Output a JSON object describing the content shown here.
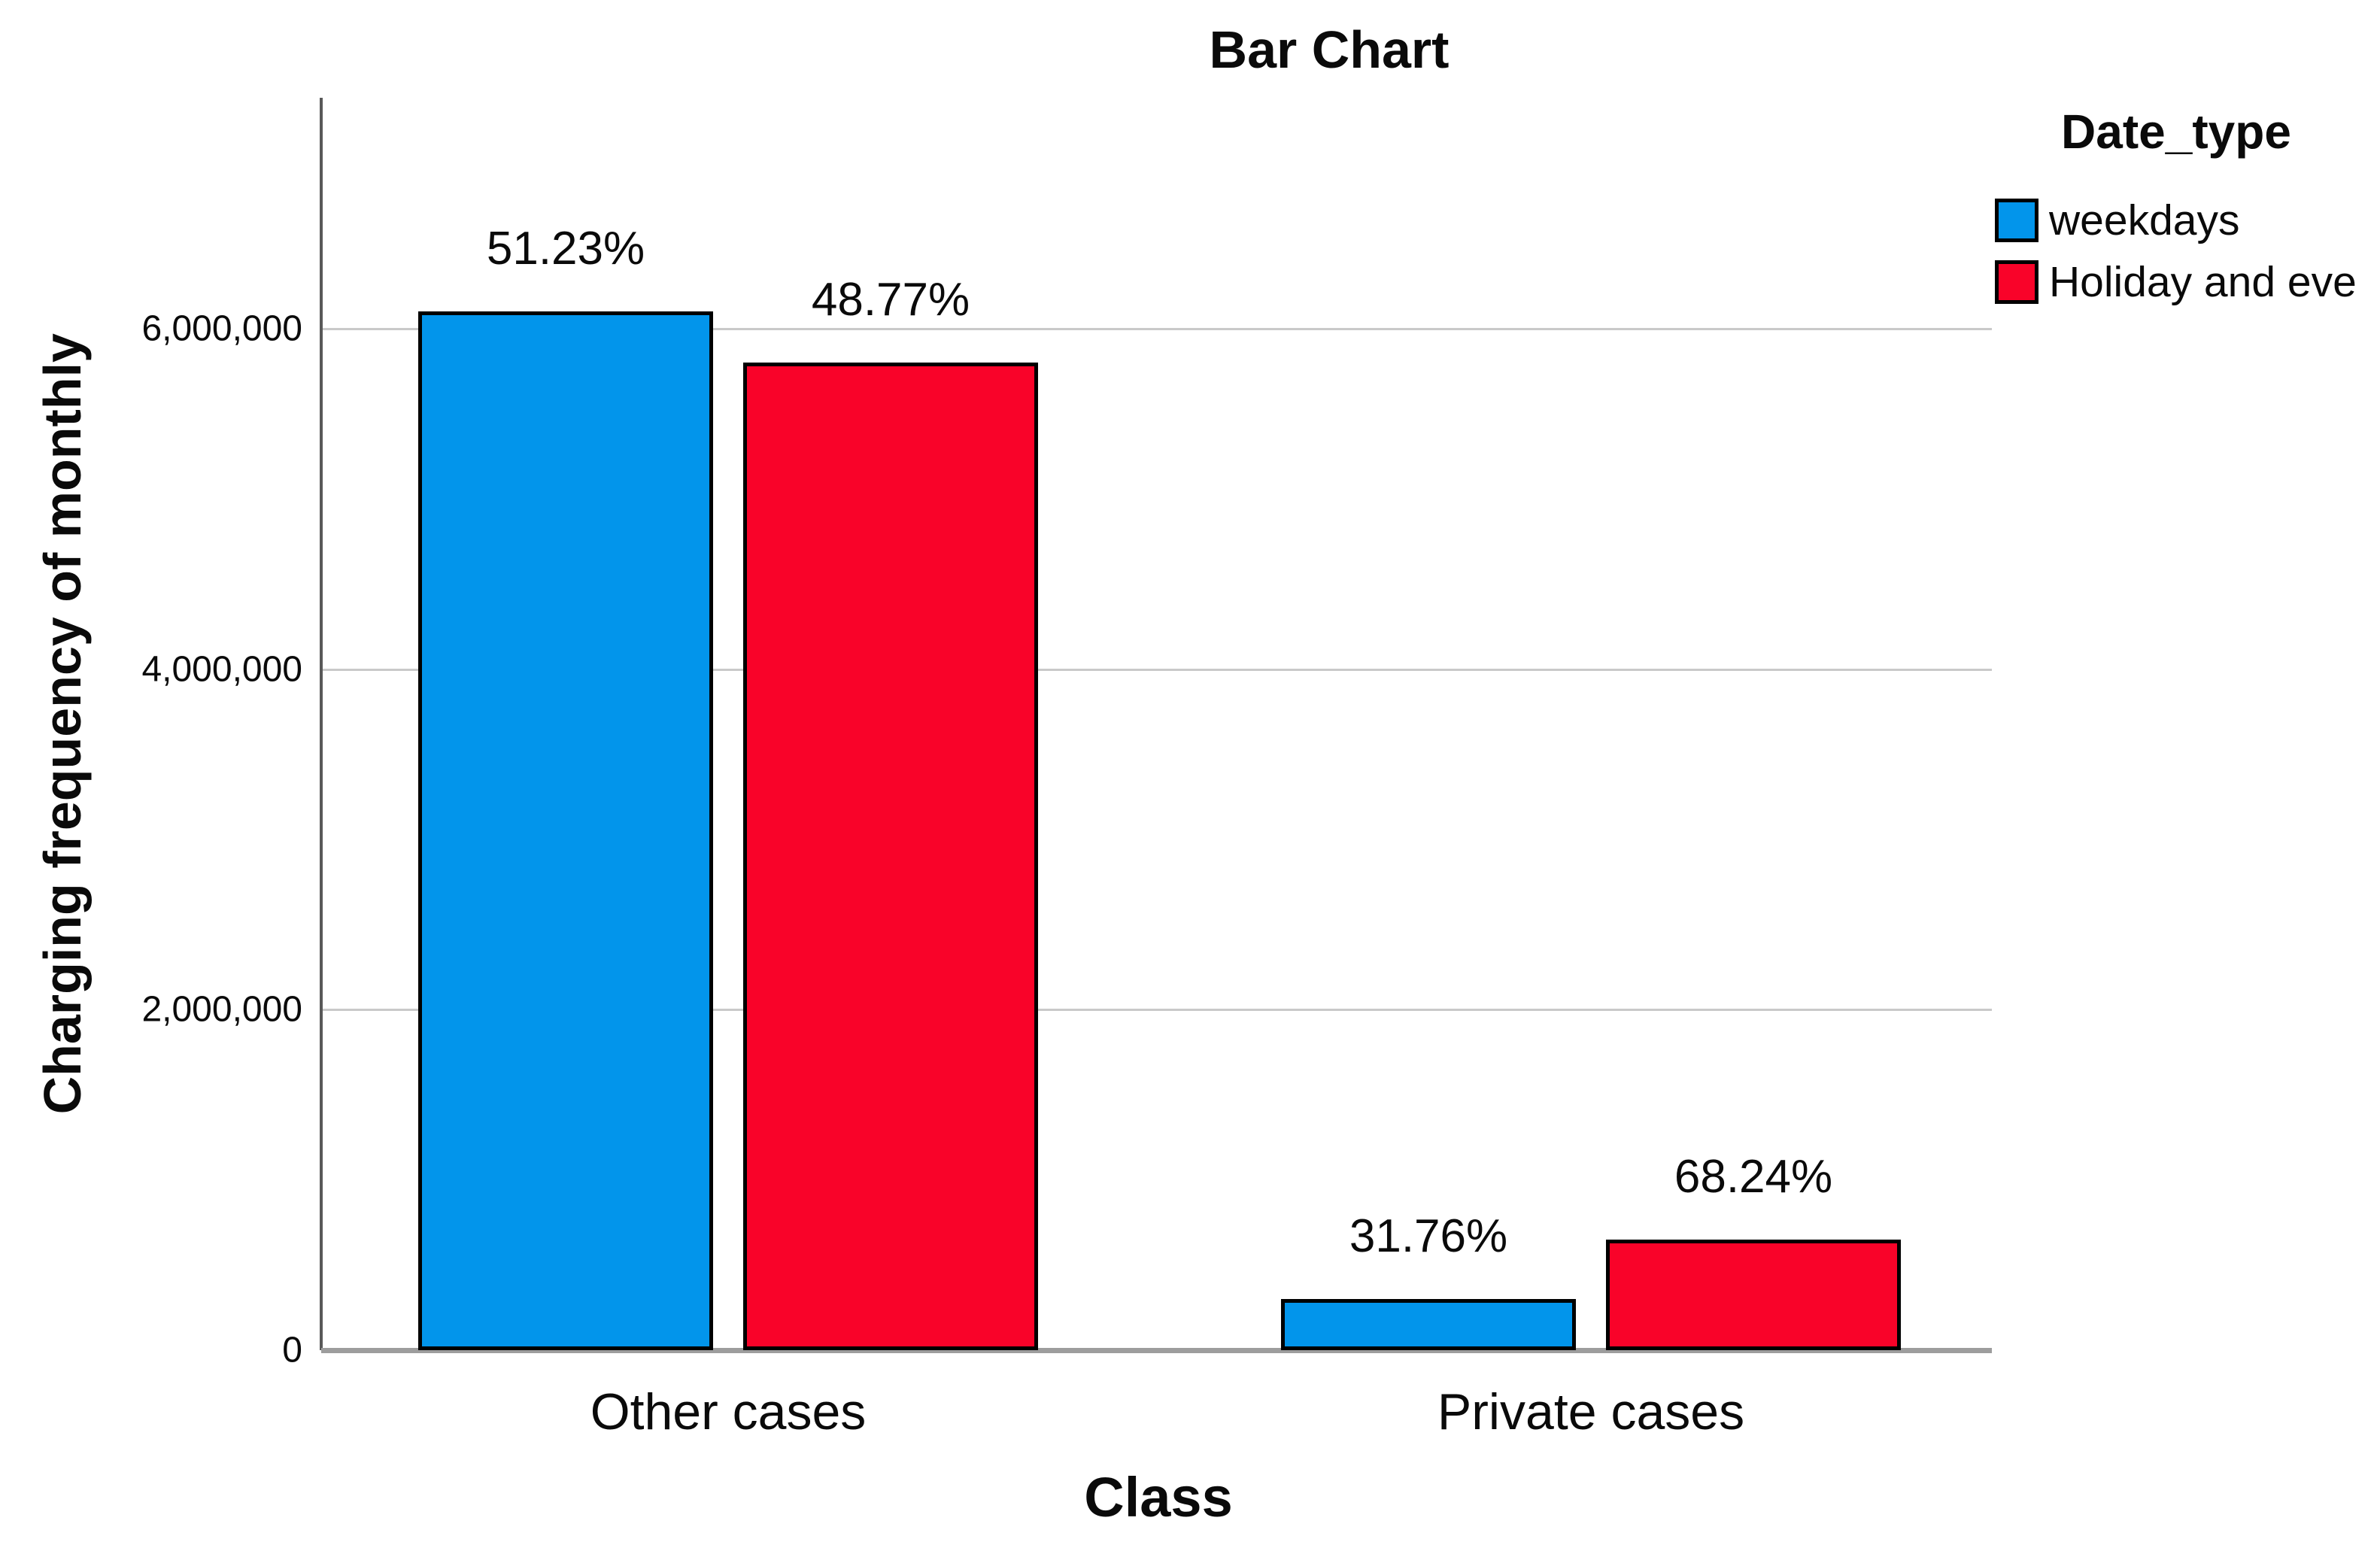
{
  "chart_data": {
    "type": "bar",
    "title": "Bar Chart",
    "xlabel": "Class",
    "ylabel": "Charging frequency of monthly",
    "categories": [
      "Other cases",
      "Private cases"
    ],
    "series": [
      {
        "name": "weekdays",
        "color": "#0295EB",
        "values": [
          6100000,
          300000
        ],
        "labels": [
          "51.23%",
          "31.76%"
        ]
      },
      {
        "name": "Holiday and eve",
        "color": "#F90329",
        "values": [
          5800000,
          650000
        ],
        "labels": [
          "48.77%",
          "68.24%"
        ]
      }
    ],
    "ylim": [
      0,
      7350000
    ],
    "yticks": [
      {
        "value": 0,
        "label": "0"
      },
      {
        "value": 2000000,
        "label": "2,000,000"
      },
      {
        "value": 4000000,
        "label": "4,000,000"
      },
      {
        "value": 6000000,
        "label": "6,000,000"
      }
    ],
    "grid": true,
    "legend_title": "Date_type",
    "legend_position": "right",
    "bar_border_color": "#000000"
  }
}
